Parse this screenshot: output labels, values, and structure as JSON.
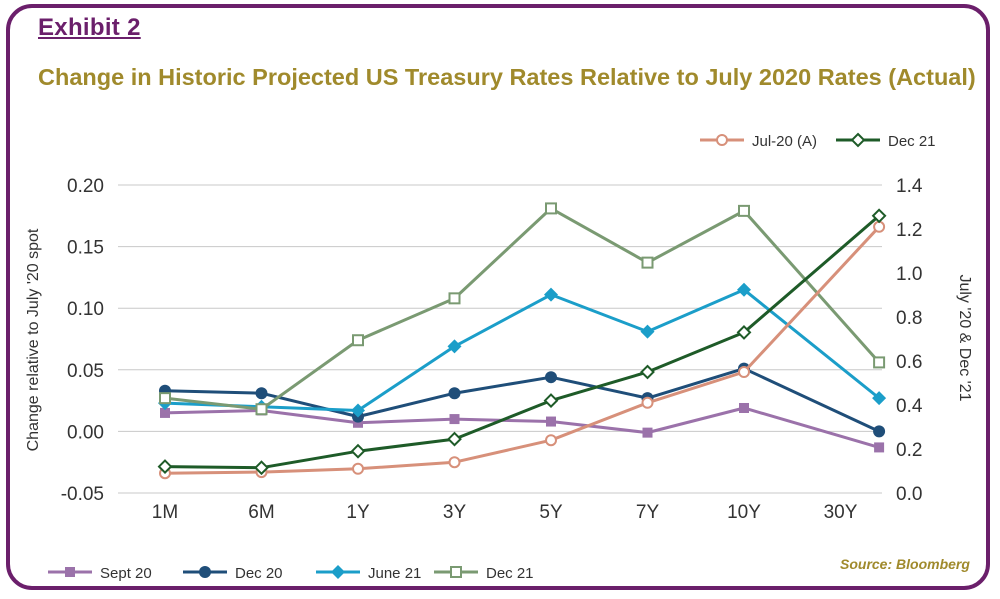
{
  "header": {
    "exhibit_label": "Exhibit 2",
    "title": "Change in Historic Projected US Treasury Rates Relative to July 2020 Rates (Actual)"
  },
  "source_note": "Source: Bloomberg",
  "colors": {
    "frame": "#6b1f6b",
    "title": "#a08a2c",
    "sept20": "#9b72aa",
    "dec20": "#1f4e79",
    "june21": "#1b9ec9",
    "dec21_left": "#7a9a72",
    "jul20": "#d7907a",
    "dec21_right": "#1e5b28"
  },
  "chart_data": {
    "type": "line",
    "categories": [
      "1M",
      "6M",
      "1Y",
      "3Y",
      "5Y",
      "7Y",
      "10Y",
      "30Y"
    ],
    "x_positions": [
      0,
      1,
      2,
      3,
      4,
      5,
      6,
      7.4
    ],
    "y_left": {
      "label": "Change relative to July '20 spot",
      "range": [
        -0.05,
        0.2
      ],
      "ticks": [
        "-0.05",
        "0.00",
        "0.05",
        "0.10",
        "0.15",
        "0.20"
      ],
      "tick_values": [
        -0.05,
        0,
        0.05,
        0.1,
        0.15,
        0.2
      ]
    },
    "y_right": {
      "label": "July '20 & Dec '21",
      "range": [
        0,
        1.4
      ],
      "ticks": [
        "0.0",
        "0.2",
        "0.4",
        "0.6",
        "0.8",
        "1.0",
        "1.2",
        "1.4"
      ],
      "tick_values": [
        0,
        0.2,
        0.4,
        0.6,
        0.8,
        1.0,
        1.2,
        1.4
      ]
    },
    "grid": true,
    "series": [
      {
        "name": "Sept 20",
        "axis": "left",
        "marker": "square",
        "color_key": "sept20",
        "values": [
          0.015,
          0.017,
          0.007,
          0.01,
          0.008,
          -0.001,
          0.019,
          -0.013
        ]
      },
      {
        "name": "Dec 20",
        "axis": "left",
        "marker": "circle",
        "color_key": "dec20",
        "values": [
          0.033,
          0.031,
          0.012,
          0.031,
          0.044,
          0.027,
          0.051,
          0.0
        ]
      },
      {
        "name": "June 21",
        "axis": "left",
        "marker": "diamond",
        "color_key": "june21",
        "values": [
          0.023,
          0.02,
          0.017,
          0.069,
          0.111,
          0.081,
          0.115,
          0.027
        ]
      },
      {
        "name": "Dec 21",
        "axis": "left",
        "marker": "square-open",
        "color_key": "dec21_left",
        "values": [
          0.027,
          0.018,
          0.074,
          0.108,
          0.181,
          0.137,
          0.179,
          0.056
        ]
      },
      {
        "name": "Jul-20 (A)",
        "axis": "right",
        "marker": "circle-open",
        "color_key": "jul20",
        "values": [
          0.09,
          0.095,
          0.11,
          0.14,
          0.24,
          0.41,
          0.55,
          1.21
        ]
      },
      {
        "name": "Dec 21",
        "axis": "right",
        "marker": "diamond-open",
        "color_key": "dec21_right",
        "values": [
          0.12,
          0.115,
          0.19,
          0.245,
          0.42,
          0.55,
          0.73,
          1.26
        ]
      }
    ],
    "legend_top": [
      {
        "label": "Jul-20 (A)",
        "series_index": 4
      },
      {
        "label": "Dec 21",
        "series_index": 5
      }
    ],
    "legend_bottom": [
      {
        "label": "Sept 20",
        "series_index": 0
      },
      {
        "label": "Dec 20",
        "series_index": 1
      },
      {
        "label": "June 21",
        "series_index": 2
      },
      {
        "label": "Dec 21",
        "series_index": 3
      }
    ]
  }
}
